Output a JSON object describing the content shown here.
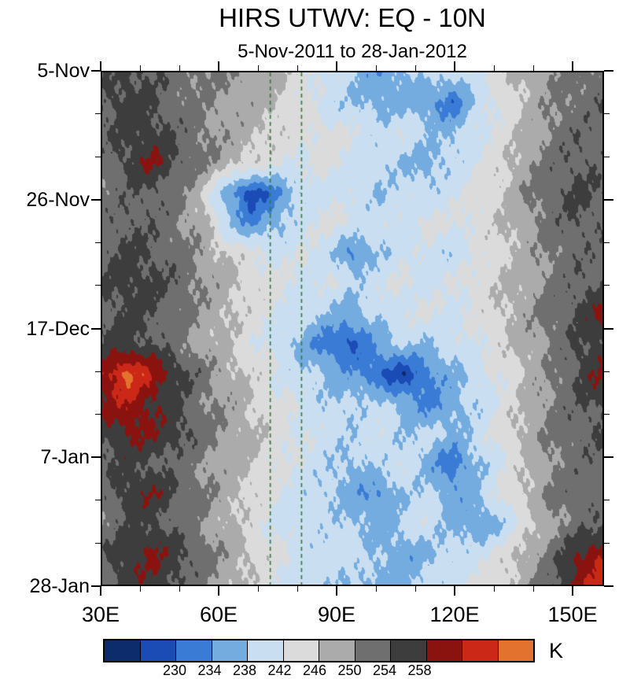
{
  "chart": {
    "title": "HIRS UTWV: EQ - 10N",
    "subtitle": "5-Nov-2011 to 28-Jan-2012"
  },
  "colorbar": {
    "unit": "K",
    "labels": [
      230,
      234,
      238,
      242,
      246,
      250,
      254,
      258
    ],
    "label_boundary_indices": [
      2,
      3,
      4,
      5,
      6,
      7,
      8,
      9
    ],
    "colors": [
      "#0c2c6c",
      "#1b4cb5",
      "#3a7bd5",
      "#74ace0",
      "#c9dff1",
      "#dbdbdb",
      "#ababab",
      "#6f6f6f",
      "#3d3d3d",
      "#8a1310",
      "#cc2817",
      "#e2722e"
    ]
  },
  "chart_data": {
    "type": "heatmap",
    "title": "HIRS UTWV: EQ - 10N",
    "subtitle": "5-Nov-2011 to 28-Jan-2012",
    "units": "K",
    "x_axis": {
      "ticks": [
        "30E",
        "60E",
        "90E",
        "120E",
        "150E"
      ],
      "tick_values": [
        30,
        60,
        90,
        120,
        150
      ],
      "minor_tick_values": [
        40,
        50,
        70,
        80,
        100,
        110,
        130,
        140
      ],
      "range": [
        30,
        158
      ]
    },
    "y_axis": {
      "ticks": [
        "5-Nov",
        "26-Nov",
        "17-Dec",
        "7-Jan",
        "28-Jan"
      ],
      "tick_day_values": [
        0,
        21,
        42,
        63,
        84
      ],
      "minor_tick_day_values": [
        7,
        14,
        28,
        35,
        49,
        56,
        70,
        77
      ],
      "range_days": [
        0,
        84
      ]
    },
    "levels": [
      226,
      230,
      234,
      238,
      242,
      246,
      250,
      254,
      258,
      262,
      266
    ],
    "reference_lines": {
      "style": "dashed",
      "color": "#2e7d32",
      "x_values": [
        73,
        81
      ]
    },
    "grid": {
      "nx": 21,
      "ny": 18,
      "x_range": [
        30,
        158
      ],
      "y_range_days": [
        0,
        84
      ],
      "values_K": [
        [
          253,
          255,
          254,
          252,
          251,
          250,
          249,
          247,
          244,
          241,
          239,
          234,
          237,
          240,
          239,
          242,
          245,
          248,
          250,
          251,
          252
        ],
        [
          254,
          256,
          254,
          252,
          250,
          249,
          248,
          246,
          243,
          240,
          238,
          236,
          237,
          235,
          231,
          239,
          243,
          247,
          250,
          252,
          253
        ],
        [
          253,
          255,
          256,
          253,
          251,
          249,
          247,
          245,
          243,
          244,
          242,
          240,
          241,
          239,
          237,
          241,
          244,
          247,
          251,
          253,
          252
        ],
        [
          252,
          255,
          259,
          254,
          251,
          248,
          245,
          243,
          242,
          243,
          241,
          239,
          238,
          236,
          239,
          242,
          245,
          249,
          252,
          254,
          253
        ],
        [
          251,
          253,
          254,
          251,
          246,
          235,
          227,
          233,
          239,
          241,
          240,
          238,
          240,
          239,
          241,
          243,
          246,
          250,
          253,
          255,
          253
        ],
        [
          252,
          254,
          253,
          251,
          248,
          238,
          233,
          237,
          241,
          243,
          242,
          240,
          241,
          243,
          242,
          244,
          246,
          249,
          252,
          254,
          253
        ],
        [
          253,
          255,
          254,
          252,
          249,
          246,
          243,
          241,
          242,
          240,
          233,
          238,
          240,
          241,
          239,
          242,
          245,
          248,
          251,
          253,
          252
        ],
        [
          254,
          256,
          255,
          253,
          250,
          247,
          245,
          243,
          241,
          242,
          239,
          241,
          243,
          240,
          242,
          244,
          246,
          248,
          251,
          253,
          254
        ],
        [
          253,
          255,
          254,
          252,
          249,
          247,
          244,
          242,
          240,
          238,
          236,
          239,
          241,
          243,
          241,
          243,
          246,
          249,
          252,
          255,
          259
        ],
        [
          254,
          256,
          254,
          251,
          248,
          246,
          243,
          240,
          237,
          231,
          229,
          236,
          239,
          238,
          240,
          242,
          245,
          248,
          251,
          254,
          256
        ],
        [
          261,
          267,
          262,
          256,
          252,
          248,
          245,
          242,
          239,
          237,
          235,
          230,
          227,
          232,
          237,
          240,
          243,
          247,
          250,
          255,
          259
        ],
        [
          258,
          262,
          258,
          254,
          251,
          249,
          246,
          243,
          241,
          239,
          238,
          240,
          236,
          233,
          236,
          239,
          243,
          247,
          251,
          253,
          255
        ],
        [
          255,
          259,
          258,
          256,
          252,
          249,
          247,
          244,
          242,
          240,
          239,
          241,
          238,
          240,
          237,
          240,
          244,
          248,
          251,
          253,
          254
        ],
        [
          253,
          255,
          254,
          252,
          250,
          248,
          246,
          243,
          241,
          239,
          237,
          239,
          241,
          236,
          231,
          237,
          242,
          246,
          250,
          252,
          253
        ],
        [
          252,
          256,
          258,
          254,
          251,
          248,
          245,
          242,
          240,
          238,
          236,
          233,
          238,
          240,
          235,
          238,
          243,
          247,
          251,
          253,
          252
        ],
        [
          251,
          254,
          255,
          252,
          250,
          247,
          244,
          241,
          239,
          240,
          238,
          236,
          239,
          241,
          237,
          234,
          238,
          244,
          249,
          252,
          253
        ],
        [
          253,
          257,
          259,
          256,
          252,
          249,
          246,
          243,
          241,
          239,
          241,
          238,
          235,
          237,
          239,
          241,
          244,
          248,
          252,
          258,
          262
        ],
        [
          252,
          256,
          257,
          254,
          251,
          248,
          245,
          242,
          240,
          239,
          238,
          236,
          237,
          239,
          241,
          243,
          245,
          249,
          253,
          261,
          264
        ]
      ]
    }
  }
}
